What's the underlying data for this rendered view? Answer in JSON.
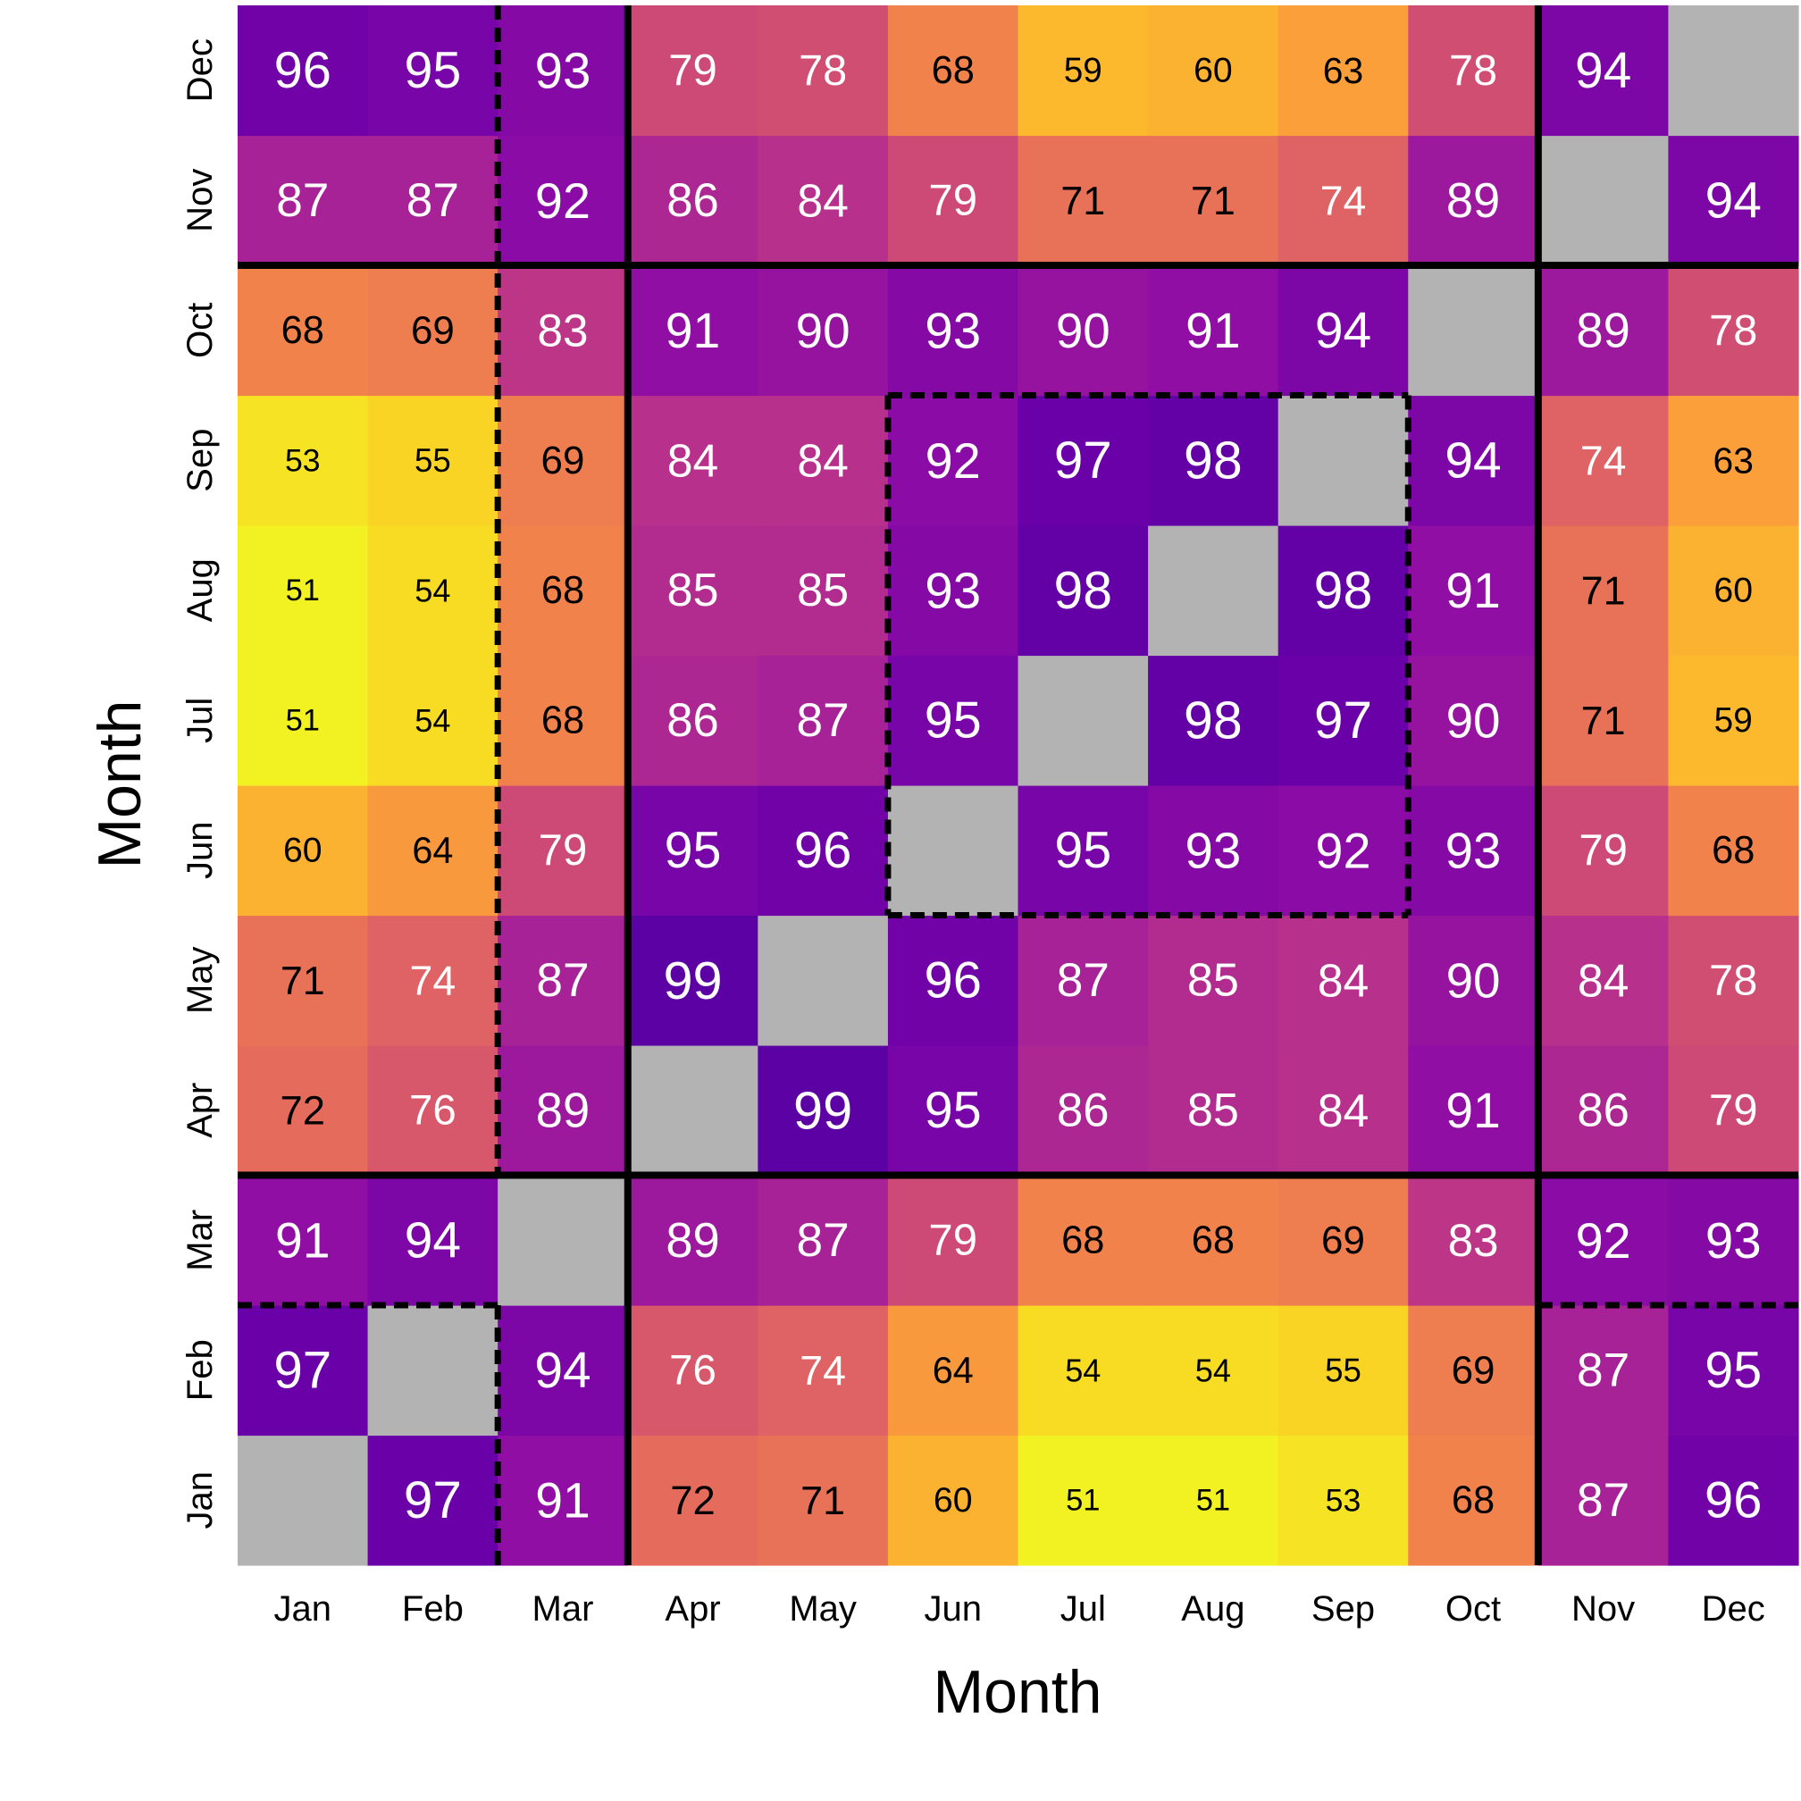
{
  "chart_data": {
    "type": "heatmap",
    "title": "",
    "xlabel": "Month",
    "ylabel": "Month",
    "x_categories": [
      "Jan",
      "Feb",
      "Mar",
      "Apr",
      "May",
      "Jun",
      "Jul",
      "Aug",
      "Sep",
      "Oct",
      "Nov",
      "Dec"
    ],
    "y_categories": [
      "Jan",
      "Feb",
      "Mar",
      "Apr",
      "May",
      "Jun",
      "Jul",
      "Aug",
      "Sep",
      "Oct",
      "Nov",
      "Dec"
    ],
    "y_order": "Jan at bottom, Dec at top",
    "values": [
      [
        null,
        97,
        91,
        72,
        71,
        60,
        51,
        51,
        53,
        68,
        87,
        96
      ],
      [
        97,
        null,
        94,
        76,
        74,
        64,
        54,
        54,
        55,
        69,
        87,
        95
      ],
      [
        91,
        94,
        null,
        89,
        87,
        79,
        68,
        68,
        69,
        83,
        92,
        93
      ],
      [
        72,
        76,
        89,
        null,
        99,
        95,
        86,
        85,
        84,
        91,
        86,
        79
      ],
      [
        71,
        74,
        87,
        99,
        null,
        96,
        87,
        85,
        84,
        90,
        84,
        78
      ],
      [
        60,
        64,
        79,
        95,
        96,
        null,
        95,
        93,
        92,
        93,
        79,
        68
      ],
      [
        51,
        54,
        68,
        86,
        87,
        95,
        null,
        98,
        97,
        90,
        71,
        59
      ],
      [
        51,
        54,
        68,
        85,
        85,
        93,
        98,
        null,
        98,
        91,
        71,
        60
      ],
      [
        53,
        55,
        69,
        84,
        84,
        92,
        97,
        98,
        null,
        94,
        74,
        63
      ],
      [
        68,
        69,
        83,
        91,
        90,
        93,
        90,
        91,
        94,
        null,
        89,
        78
      ],
      [
        87,
        87,
        92,
        86,
        84,
        79,
        71,
        71,
        74,
        89,
        null,
        94
      ],
      [
        96,
        95,
        93,
        79,
        78,
        68,
        59,
        60,
        63,
        78,
        94,
        null
      ]
    ],
    "colorscale": "plasma",
    "value_range": [
      50,
      100
    ],
    "missing_color": "#b3b3b3",
    "solid_cluster_boundaries": [
      "Mar|Apr",
      "Oct|Nov"
    ],
    "dashed_groups": [
      [
        "Jan",
        "Feb"
      ],
      [
        "Jun",
        "Jul",
        "Aug",
        "Sep"
      ],
      [
        "Nov",
        "Dec"
      ]
    ],
    "grid": false,
    "legend": "none"
  }
}
